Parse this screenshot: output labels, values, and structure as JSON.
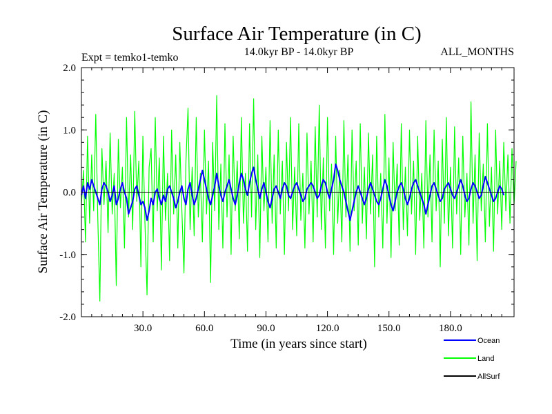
{
  "chart_data": {
    "type": "line",
    "title": "Surface Air Temperature (in C)",
    "subtitle_left": "Expt = temko1-temko",
    "subtitle_center": "14.0kyr BP - 14.0kyr BP",
    "subtitle_right": "ALL_MONTHS",
    "xlabel": "Time (in years since start)",
    "ylabel": "Surface Air Temperature (in C)",
    "xlim": [
      0,
      211
    ],
    "ylim": [
      -2.0,
      2.0
    ],
    "xticks": [
      30,
      60,
      90,
      120,
      150,
      180
    ],
    "xtick_labels": [
      "30.0",
      "60.0",
      "90.0",
      "120.0",
      "150.0",
      "180.0"
    ],
    "yticks": [
      -2.0,
      -1.0,
      0.0,
      1.0,
      2.0
    ],
    "ytick_labels": [
      "-2.0",
      "-1.0",
      "0.0",
      "1.0",
      "2.0"
    ],
    "zero_line": true,
    "legend": [
      {
        "name": "Ocean",
        "color": "#0000ff"
      },
      {
        "name": "Land",
        "color": "#00ff00"
      },
      {
        "name": "AllSurf",
        "color": "#000000"
      }
    ],
    "series": [
      {
        "name": "Land",
        "color": "#00ff00",
        "x_start": 0,
        "x_step": 1,
        "values": [
          -0.2,
          0.35,
          -0.8,
          0.9,
          -0.5,
          0.6,
          -0.3,
          1.25,
          -0.45,
          -1.75,
          0.7,
          -0.2,
          0.5,
          -0.65,
          0.95,
          -0.35,
          0.3,
          -1.5,
          0.85,
          -0.25,
          0.4,
          -0.9,
          1.2,
          -0.4,
          0.6,
          -0.6,
          1.3,
          -0.15,
          0.5,
          -1.2,
          0.9,
          -0.5,
          -1.65,
          0.4,
          0.7,
          -0.8,
          1.2,
          -0.3,
          0.55,
          -1.25,
          0.9,
          -0.45,
          0.3,
          -1.1,
          1.0,
          -0.35,
          0.6,
          -0.9,
          0.8,
          -0.3,
          -1.3,
          0.5,
          1.35,
          -0.6,
          0.4,
          -0.7,
          1.2,
          -0.4,
          0.3,
          -0.8,
          1.0,
          -0.35,
          0.5,
          -1.45,
          0.8,
          -0.3,
          1.55,
          -0.6,
          0.45,
          -0.9,
          1.1,
          -0.4,
          0.6,
          -1.0,
          0.9,
          -0.3,
          0.5,
          -0.75,
          1.2,
          -0.5,
          0.3,
          -0.95,
          1.1,
          -0.4,
          1.5,
          -0.6,
          0.6,
          -1.05,
          0.9,
          -0.3,
          0.4,
          -0.8,
          1.15,
          -0.5,
          0.6,
          -0.9,
          1.0,
          -0.35,
          0.5,
          -1.0,
          0.8,
          -0.3,
          1.2,
          -0.6,
          0.4,
          -0.7,
          1.1,
          -0.45,
          0.3,
          -0.9,
          0.95,
          -0.35,
          0.5,
          -0.8,
          1.05,
          -0.4,
          1.4,
          -0.6,
          0.55,
          -0.9,
          1.2,
          -0.3,
          0.45,
          -1.0,
          0.9,
          -0.5,
          0.35,
          -0.8,
          1.15,
          -0.4,
          0.6,
          -0.95,
          1.0,
          -0.3,
          0.5,
          -0.85,
          1.1,
          -0.5,
          0.4,
          -0.75,
          0.95,
          -0.35,
          0.6,
          -1.2,
          0.9,
          -0.4,
          0.3,
          -0.9,
          1.25,
          -0.5,
          0.55,
          -1.05,
          0.8,
          -0.3,
          0.45,
          -0.85,
          1.1,
          -0.6,
          0.4,
          -0.7,
          1.0,
          -0.35,
          0.5,
          -1.0,
          0.9,
          -0.45,
          0.3,
          -0.9,
          1.15,
          -0.4,
          0.6,
          -0.8,
          1.0,
          -0.3,
          0.5,
          -1.2,
          0.85,
          -0.5,
          1.2,
          -0.7,
          0.4,
          -0.9,
          1.05,
          -0.35,
          0.55,
          -1.0,
          0.9,
          -0.4,
          0.3,
          -0.85,
          1.45,
          -0.5,
          0.6,
          -1.1,
          0.95,
          -0.3,
          0.45,
          -0.8,
          1.1,
          -0.55,
          0.4,
          -0.95,
          1.0,
          -0.35,
          0.5,
          -0.6,
          0.8,
          -0.3,
          0.6,
          -0.5,
          0.7,
          -0.2,
          0.5
        ]
      },
      {
        "name": "Ocean",
        "color": "#0000ff",
        "x_start": 0,
        "x_step": 1,
        "values": [
          -0.05,
          0.1,
          -0.1,
          0.15,
          0.05,
          0.2,
          0.1,
          0.0,
          -0.1,
          -0.2,
          0.05,
          0.15,
          0.1,
          0.0,
          -0.15,
          -0.05,
          0.1,
          -0.2,
          -0.1,
          0.05,
          0.15,
          0.0,
          -0.1,
          -0.35,
          -0.25,
          -0.15,
          0.05,
          0.1,
          -0.05,
          -0.2,
          -0.15,
          -0.25,
          -0.45,
          -0.3,
          -0.1,
          -0.2,
          0.0,
          0.05,
          -0.1,
          -0.2,
          -0.05,
          -0.15,
          0.05,
          0.1,
          0.0,
          -0.1,
          -0.25,
          -0.15,
          0.0,
          0.1,
          -0.1,
          -0.2,
          0.05,
          0.15,
          -0.05,
          -0.2,
          -0.1,
          0.05,
          0.2,
          0.35,
          0.2,
          0.05,
          -0.1,
          -0.2,
          -0.05,
          0.1,
          0.3,
          0.1,
          -0.05,
          -0.15,
          0.0,
          0.1,
          0.2,
          0.05,
          -0.1,
          -0.2,
          -0.05,
          0.15,
          0.3,
          0.2,
          0.05,
          -0.05,
          0.15,
          0.3,
          0.4,
          0.2,
          0.05,
          -0.1,
          0.05,
          0.15,
          0.0,
          -0.15,
          -0.25,
          -0.1,
          0.05,
          0.1,
          0.0,
          -0.1,
          0.05,
          0.15,
          0.1,
          -0.05,
          -0.1,
          0.0,
          0.1,
          0.15,
          0.05,
          -0.05,
          -0.15,
          -0.1,
          0.05,
          0.1,
          0.15,
          0.1,
          0.0,
          -0.1,
          -0.05,
          0.1,
          0.2,
          0.15,
          0.0,
          -0.1,
          0.05,
          0.2,
          0.45,
          0.35,
          0.2,
          0.1,
          0.0,
          -0.15,
          -0.3,
          -0.45,
          -0.3,
          -0.15,
          0.0,
          0.1,
          0.0,
          -0.1,
          -0.2,
          -0.1,
          0.05,
          0.15,
          0.05,
          -0.05,
          -0.15,
          -0.2,
          -0.1,
          0.05,
          0.2,
          0.1,
          -0.05,
          -0.2,
          -0.3,
          -0.15,
          0.0,
          0.1,
          0.15,
          0.05,
          -0.1,
          -0.2,
          -0.1,
          0.05,
          0.15,
          0.2,
          0.1,
          0.0,
          -0.1,
          -0.2,
          -0.35,
          -0.2,
          -0.05,
          0.1,
          0.15,
          0.05,
          -0.05,
          -0.15,
          -0.1,
          0.05,
          0.1,
          0.15,
          0.05,
          -0.05,
          -0.1,
          0.0,
          0.1,
          0.2,
          0.1,
          -0.05,
          -0.15,
          -0.1,
          0.05,
          0.15,
          0.1,
          0.0,
          -0.1,
          -0.05,
          0.1,
          0.25,
          0.15,
          0.05,
          -0.05,
          -0.15,
          -0.1,
          0.0,
          0.1,
          0.05,
          -0.05
        ]
      }
    ]
  }
}
